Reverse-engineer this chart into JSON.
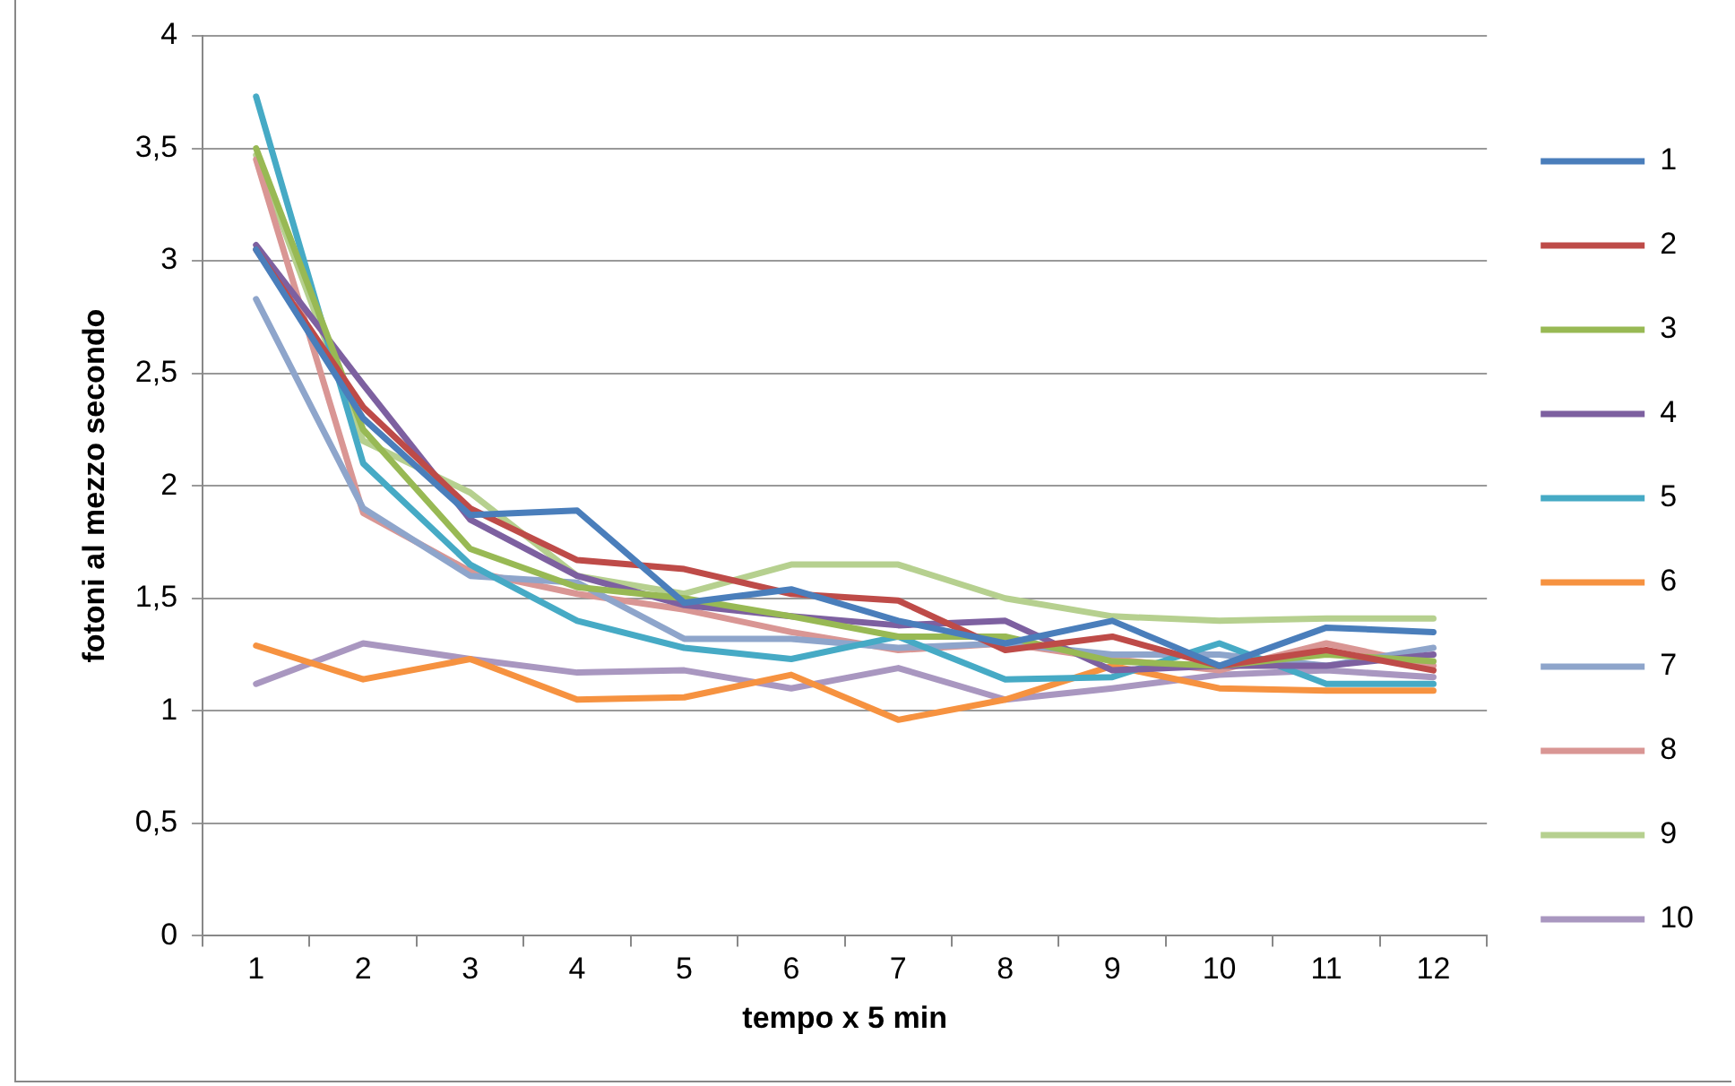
{
  "chart_data": {
    "type": "line",
    "xlabel": "tempo x 5 min",
    "ylabel": "fotoni al mezzo secondo",
    "categories": [
      "1",
      "2",
      "3",
      "4",
      "5",
      "6",
      "7",
      "8",
      "9",
      "10",
      "11",
      "12"
    ],
    "ylim": [
      0,
      4
    ],
    "yticks": [
      0,
      {
        "value": 0.5,
        "label": "0,5"
      },
      1,
      {
        "value": 1.5,
        "label": "1,5"
      },
      2,
      {
        "value": 2.5,
        "label": "2,5"
      },
      3,
      {
        "value": 3.5,
        "label": "3,5"
      },
      4
    ],
    "grid": "y",
    "legend": "right",
    "marker": "none",
    "line_style": "solid",
    "series": [
      {
        "name": "1",
        "color": "#4a7ebb",
        "values": [
          3.05,
          2.3,
          1.87,
          1.89,
          1.48,
          1.54,
          1.4,
          1.3,
          1.4,
          1.2,
          1.37,
          1.35
        ]
      },
      {
        "name": "2",
        "color": "#be4b48",
        "values": [
          3.05,
          2.35,
          1.9,
          1.67,
          1.63,
          1.52,
          1.49,
          1.27,
          1.33,
          1.2,
          1.27,
          1.18
        ]
      },
      {
        "name": "3",
        "color": "#98b954",
        "values": [
          3.5,
          2.25,
          1.72,
          1.55,
          1.5,
          1.42,
          1.33,
          1.33,
          1.22,
          1.2,
          1.25,
          1.22
        ]
      },
      {
        "name": "4",
        "color": "#7d60a0",
        "values": [
          3.07,
          2.45,
          1.85,
          1.6,
          1.47,
          1.42,
          1.38,
          1.4,
          1.18,
          1.2,
          1.2,
          1.25
        ]
      },
      {
        "name": "5",
        "color": "#46aac5",
        "values": [
          3.73,
          2.1,
          1.65,
          1.4,
          1.28,
          1.23,
          1.33,
          1.14,
          1.15,
          1.3,
          1.12,
          1.12
        ]
      },
      {
        "name": "6",
        "color": "#f69240",
        "values": [
          1.29,
          1.14,
          1.23,
          1.05,
          1.06,
          1.16,
          0.96,
          1.05,
          1.2,
          1.1,
          1.09,
          1.09
        ]
      },
      {
        "name": "7",
        "color": "#8ea5cb",
        "values": [
          2.83,
          1.9,
          1.6,
          1.57,
          1.32,
          1.32,
          1.28,
          1.3,
          1.25,
          1.25,
          1.2,
          1.28
        ]
      },
      {
        "name": "8",
        "color": "#d99694",
        "values": [
          3.45,
          1.88,
          1.62,
          1.52,
          1.45,
          1.35,
          1.27,
          1.3,
          1.23,
          1.18,
          1.3,
          1.2
        ]
      },
      {
        "name": "9",
        "color": "#b6d08f",
        "values": [
          3.47,
          2.2,
          1.97,
          1.6,
          1.52,
          1.65,
          1.65,
          1.5,
          1.42,
          1.4,
          1.41,
          1.41
        ]
      },
      {
        "name": "10",
        "color": "#a997c0",
        "values": [
          1.12,
          1.3,
          1.23,
          1.17,
          1.18,
          1.1,
          1.19,
          1.05,
          1.1,
          1.16,
          1.18,
          1.15
        ]
      }
    ]
  }
}
